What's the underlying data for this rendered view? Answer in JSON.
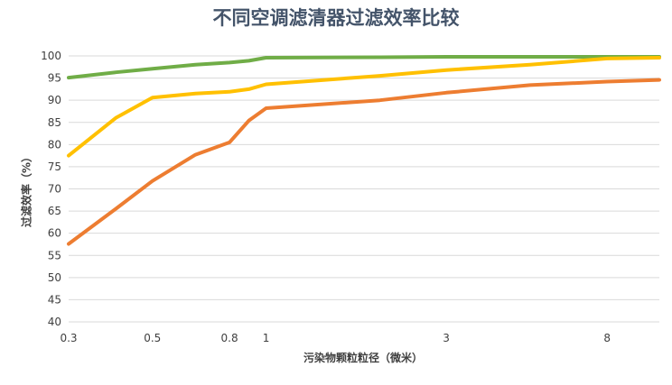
{
  "chart_data": {
    "type": "line",
    "title": "不同空调滤清器过滤效率比较",
    "xlabel": "污染物颗粒粒径（微米）",
    "ylabel": "过滤效率（%）",
    "ylim": [
      40,
      100
    ],
    "yticks": [
      40,
      45,
      50,
      55,
      60,
      65,
      70,
      75,
      80,
      85,
      90,
      95,
      100
    ],
    "x_tick_labels": [
      "0.3",
      "0.5",
      "0.8",
      "1",
      "3",
      "8"
    ],
    "x_tick_values": [
      0.3,
      0.5,
      0.8,
      1,
      3,
      8
    ],
    "x_range": [
      0.3,
      11
    ],
    "grid": true,
    "x": [
      0.3,
      0.4,
      0.5,
      0.65,
      0.8,
      0.9,
      1,
      2,
      3,
      5,
      8,
      11
    ],
    "series": [
      {
        "color": "#70ad47",
        "values": [
          95.1,
          96.3,
          97.1,
          98.0,
          98.5,
          98.9,
          99.6,
          99.7,
          99.8,
          99.8,
          99.8,
          99.8
        ]
      },
      {
        "color": "#ffc000",
        "values": [
          77.5,
          86.0,
          90.6,
          91.5,
          91.9,
          92.5,
          93.6,
          95.5,
          96.8,
          98.0,
          99.4,
          99.6
        ]
      },
      {
        "color": "#ed7d31",
        "values": [
          57.6,
          65.5,
          71.8,
          77.7,
          80.5,
          85.4,
          88.2,
          90.0,
          91.7,
          93.4,
          94.2,
          94.6
        ]
      }
    ]
  }
}
